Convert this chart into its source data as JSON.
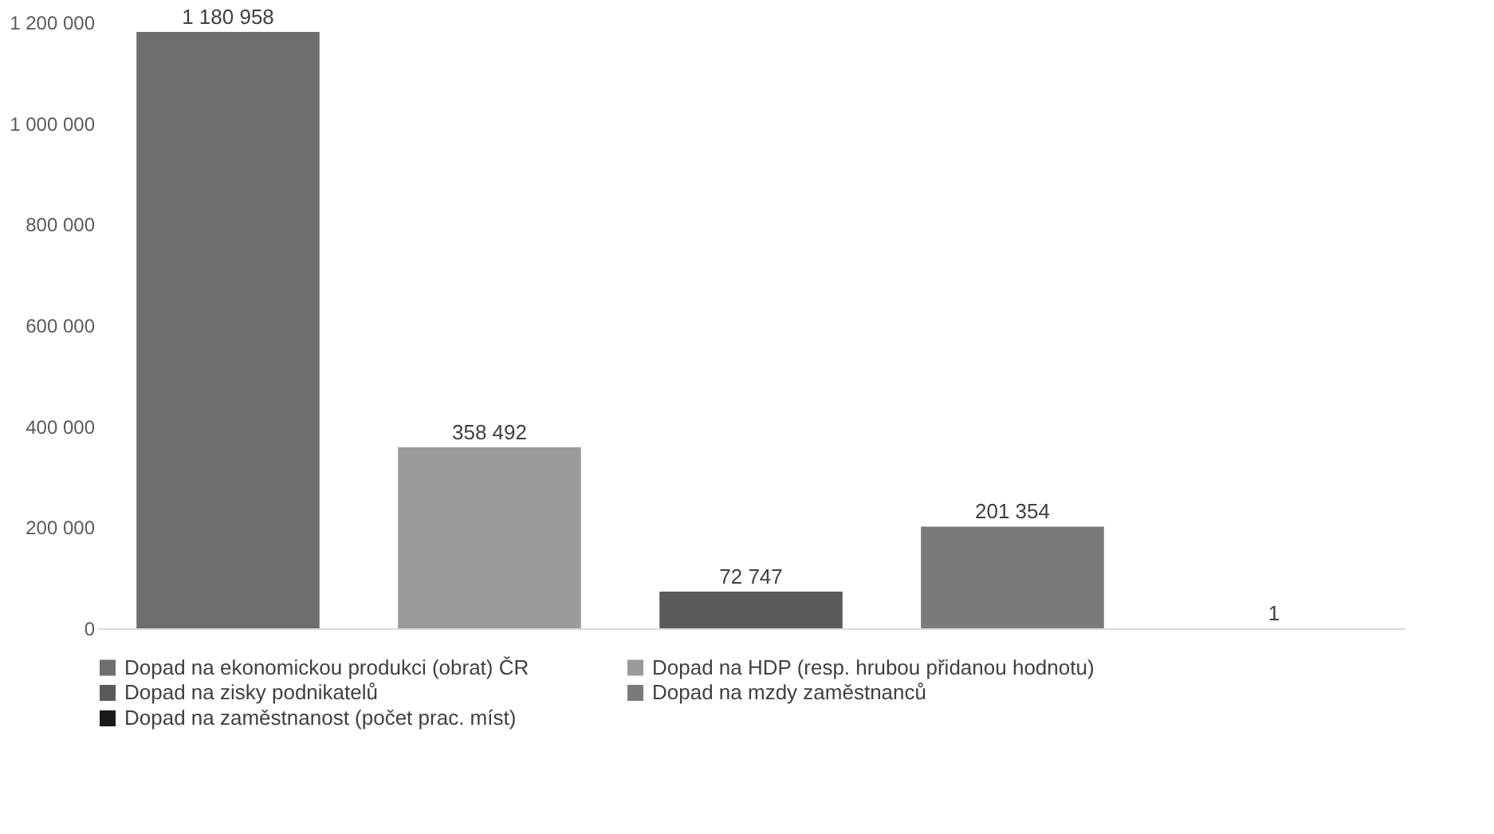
{
  "chart_data": {
    "type": "bar",
    "categories": [
      null,
      null,
      null,
      null,
      null
    ],
    "series": [
      {
        "name": "Dopad na ekonomickou produkci (obrat) ČR",
        "color": "#6e6e6e",
        "values": [
          1180958,
          null,
          null,
          null,
          null
        ],
        "value_labels": [
          "1 180 958",
          null,
          null,
          null,
          null
        ]
      },
      {
        "name": "Dopad na HDP (resp. hrubou přidanou hodnotu)",
        "color": "#9a9a9a",
        "values": [
          null,
          358492,
          null,
          null,
          null
        ],
        "value_labels": [
          null,
          "358 492",
          null,
          null,
          null
        ]
      },
      {
        "name": "Dopad na zisky podnikatelů",
        "color": "#5a5a5a",
        "values": [
          null,
          null,
          72747,
          null,
          null
        ],
        "value_labels": [
          null,
          null,
          "72 747",
          null,
          null
        ]
      },
      {
        "name": "Dopad na mzdy zaměstnanců",
        "color": "#7a7a7a",
        "values": [
          null,
          null,
          null,
          201354,
          null
        ],
        "value_labels": [
          null,
          null,
          null,
          "201 354",
          null
        ]
      },
      {
        "name": "Dopad na zaměstnanost (počet prac. míst)",
        "color": "#1a1a1a",
        "values": [
          null,
          null,
          null,
          null,
          1
        ],
        "value_labels": [
          null,
          null,
          null,
          null,
          "1"
        ]
      }
    ],
    "ylim": [
      0,
      1200000
    ],
    "yticks": [
      {
        "value": 0,
        "label": "0"
      },
      {
        "value": 200000,
        "label": "200 000"
      },
      {
        "value": 400000,
        "label": "400 000"
      },
      {
        "value": 600000,
        "label": "600 000"
      },
      {
        "value": 800000,
        "label": "800 000"
      },
      {
        "value": 1000000,
        "label": "1 000 000"
      },
      {
        "value": 1200000,
        "label": "1 200 000"
      }
    ],
    "tick_labels": "y",
    "grid": false,
    "legend": "bottom"
  }
}
